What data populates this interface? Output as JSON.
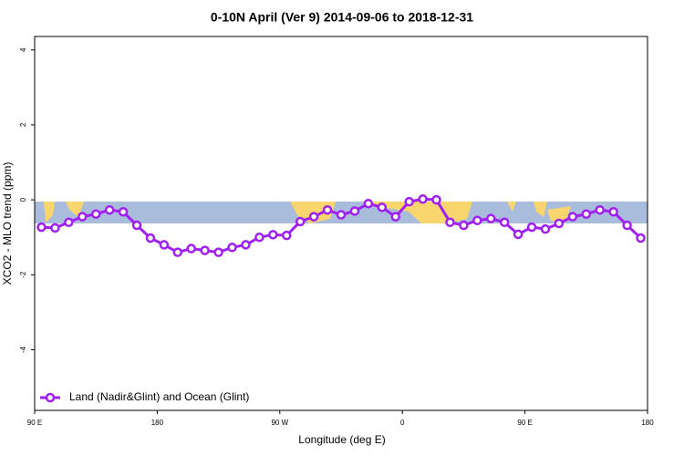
{
  "chart_data": {
    "type": "line",
    "title": "0-10N April (Ver 9)   2014-09-06 to 2018-12-31",
    "x_label": "Longitude (deg E)",
    "y_label": "XCO2 - MLO trend (ppm)",
    "x": [
      95,
      105,
      115,
      125,
      135,
      145,
      155,
      165,
      175,
      185,
      195,
      205,
      215,
      225,
      235,
      245,
      255,
      265,
      275,
      285,
      295,
      305,
      315,
      325,
      335,
      345,
      355,
      365,
      375,
      385,
      395,
      405,
      415,
      425,
      435,
      445,
      455,
      465,
      475,
      485,
      495,
      505,
      515,
      525,
      535
    ],
    "series": [
      {
        "name": "Land (Nadir&Glint) and Ocean (Glint)",
        "color": "#a020f0",
        "values": [
          -0.73,
          -0.75,
          -0.6,
          -0.45,
          -0.38,
          -0.27,
          -0.32,
          -0.68,
          -1.02,
          -1.2,
          -1.4,
          -1.3,
          -1.35,
          -1.4,
          -1.27,
          -1.2,
          -1.0,
          -0.93,
          -0.95,
          -0.58,
          -0.45,
          -0.27,
          -0.4,
          -0.3,
          -0.1,
          -0.2,
          -0.45,
          -0.05,
          0.02,
          0.0,
          -0.6,
          -0.68,
          -0.55,
          -0.5,
          -0.6,
          -0.92,
          -0.73,
          -0.78,
          -0.63,
          -0.45,
          -0.38,
          -0.27,
          -0.32,
          -0.68,
          -1.02
        ]
      }
    ],
    "xlim": [
      90,
      540
    ],
    "xticks": [
      {
        "value": 90,
        "label": "90 E"
      },
      180,
      {
        "value": 270,
        "label": "90 W"
      },
      {
        "value": 360,
        "label": "0"
      },
      {
        "value": 450,
        "label": "90 E"
      },
      {
        "value": 540,
        "label": "180"
      }
    ],
    "ylim": [
      -5.62,
      4.36
    ],
    "yticks": [
      -4,
      -2,
      0,
      2,
      4
    ],
    "legend": "bottom-left"
  }
}
